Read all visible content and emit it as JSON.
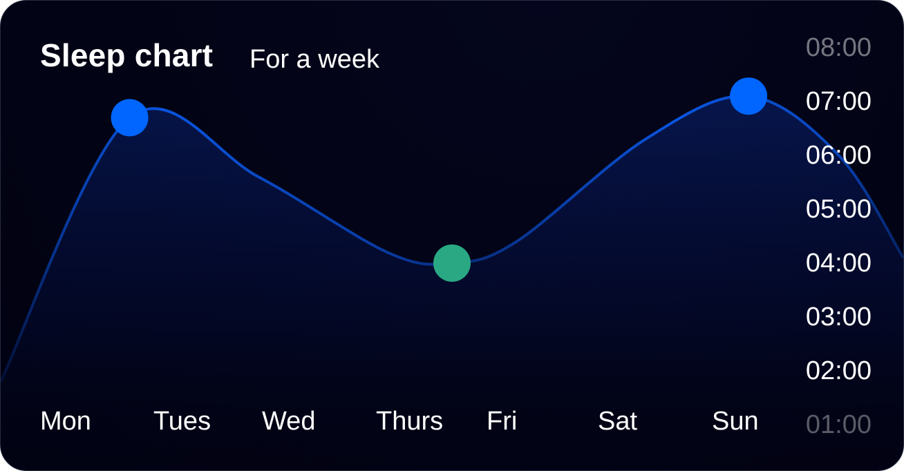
{
  "header": {
    "title": "Sleep chart",
    "subtitle": "For a week"
  },
  "colors": {
    "line": "#0a55e0",
    "peak_marker": "#0066ff",
    "low_marker": "#2aa884",
    "background": "#020314"
  },
  "chart_data": {
    "type": "area",
    "title": "Sleep chart",
    "subtitle": "For a week",
    "xlabel": "",
    "ylabel": "",
    "categories": [
      "Mon",
      "Tues",
      "Wed",
      "Thurs",
      "Fri",
      "Sat",
      "Sun"
    ],
    "y_tick_labels": [
      "08:00",
      "07:00",
      "06:00",
      "05:00",
      "04:00",
      "03:00",
      "02:00",
      "01:00"
    ],
    "ylim": [
      1,
      8
    ],
    "y_axis_position": "right",
    "grid": false,
    "curve": [
      {
        "x": 1.0,
        "y": 1.8
      },
      {
        "x": 2.0,
        "y": 6.7
      },
      {
        "x": 3.0,
        "y": 5.6
      },
      {
        "x": 4.0,
        "y": 4.2
      },
      {
        "x": 4.5,
        "y": 4.0
      },
      {
        "x": 5.0,
        "y": 4.4
      },
      {
        "x": 6.0,
        "y": 6.3
      },
      {
        "x": 6.8,
        "y": 7.1
      },
      {
        "x": 7.5,
        "y": 6.0
      },
      {
        "x": 8.0,
        "y": 4.1
      }
    ],
    "markers": [
      {
        "x": 2.0,
        "y": 6.7,
        "color": "#0066ff"
      },
      {
        "x": 4.5,
        "y": 4.0,
        "color": "#2aa884"
      },
      {
        "x": 6.8,
        "y": 7.1,
        "color": "#0066ff"
      }
    ]
  }
}
